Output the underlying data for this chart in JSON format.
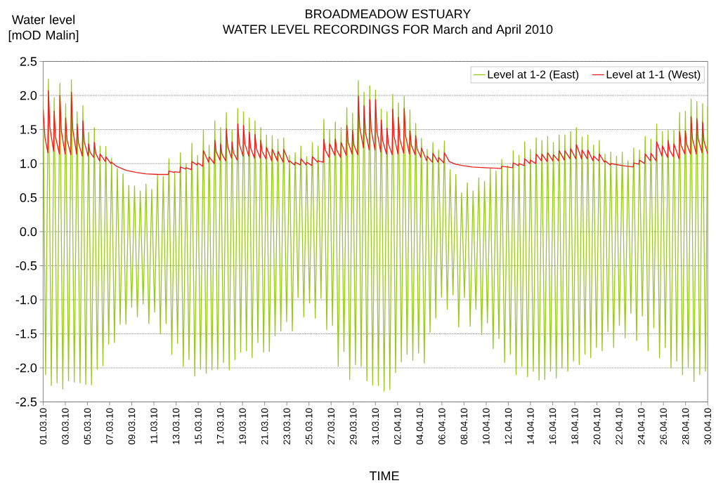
{
  "chart_data": {
    "type": "line",
    "title": "BROADMEADOW ESTUARY",
    "subtitle": "WATER LEVEL RECORDINGS FOR March and April 2010",
    "xlabel": "TIME",
    "ylabel": "Water level [mOD Malin]",
    "xlim": [
      "2010-03-01",
      "2010-04-30"
    ],
    "xticks": [
      {
        "value": "2010-03-01",
        "label": "01.03.10"
      },
      {
        "value": "2010-03-03",
        "label": "03.03.10"
      },
      {
        "value": "2010-03-05",
        "label": "05.03.10"
      },
      {
        "value": "2010-03-07",
        "label": "07.03.10"
      },
      {
        "value": "2010-03-09",
        "label": "09.03.10"
      },
      {
        "value": "2010-03-11",
        "label": "11.03.10"
      },
      {
        "value": "2010-03-13",
        "label": "13.03.10"
      },
      {
        "value": "2010-03-15",
        "label": "15.03.10"
      },
      {
        "value": "2010-03-17",
        "label": "17.03.10"
      },
      {
        "value": "2010-03-19",
        "label": "19.03.10"
      },
      {
        "value": "2010-03-21",
        "label": "21.03.10"
      },
      {
        "value": "2010-03-23",
        "label": "23.03.10"
      },
      {
        "value": "2010-03-25",
        "label": "25.03.10"
      },
      {
        "value": "2010-03-27",
        "label": "27.03.10"
      },
      {
        "value": "2010-03-29",
        "label": "29.03.10"
      },
      {
        "value": "2010-03-31",
        "label": "31.03.10"
      },
      {
        "value": "2010-04-02",
        "label": "02.04.10"
      },
      {
        "value": "2010-04-04",
        "label": "04.04.10"
      },
      {
        "value": "2010-04-06",
        "label": "06.04.10"
      },
      {
        "value": "2010-04-08",
        "label": "08.04.10"
      },
      {
        "value": "2010-04-10",
        "label": "10.04.10"
      },
      {
        "value": "2010-04-12",
        "label": "12.04.10"
      },
      {
        "value": "2010-04-14",
        "label": "14.04.10"
      },
      {
        "value": "2010-04-16",
        "label": "16.04.10"
      },
      {
        "value": "2010-04-18",
        "label": "18.04.10"
      },
      {
        "value": "2010-04-20",
        "label": "20.04.10"
      },
      {
        "value": "2010-04-22",
        "label": "22.04.10"
      },
      {
        "value": "2010-04-24",
        "label": "24.04.10"
      },
      {
        "value": "2010-04-26",
        "label": "26.04.10"
      },
      {
        "value": "2010-04-28",
        "label": "28.04.10"
      },
      {
        "value": "2010-04-30",
        "label": "30.04.10"
      }
    ],
    "ylim": [
      -2.5,
      2.5
    ],
    "yticks": [
      -2.5,
      {
        "value": -2,
        "label": "-2.0"
      },
      -1.5,
      {
        "value": -1,
        "label": "-1.0"
      },
      -0.5,
      {
        "value": 0,
        "label": "0.0"
      },
      0.5,
      {
        "value": 1,
        "label": "1.0"
      },
      1.5,
      {
        "value": 2,
        "label": "2.0"
      },
      2.5
    ],
    "grid": "y",
    "legend": "top right",
    "series": [
      {
        "name": "Level at 1-2 (East)",
        "color": "#9bc81e",
        "x": [
          "2010-03-01T00:00",
          "2010-03-01T05:16",
          "2010-03-01T11:30",
          "2010-03-01T17:42",
          "2010-03-01T23:56",
          "2010-03-02T06:08",
          "2010-03-02T12:22",
          "2010-03-02T18:34",
          "2010-03-03T00:48",
          "2010-03-03T07:00",
          "2010-03-03T13:14",
          "2010-03-03T19:26",
          "2010-03-04T01:40",
          "2010-03-04T07:52",
          "2010-03-04T14:06",
          "2010-03-04T20:18",
          "2010-03-05T02:32",
          "2010-03-05T08:44",
          "2010-03-05T14:58",
          "2010-03-05T21:10",
          "2010-03-06T03:24",
          "2010-03-06T09:36",
          "2010-03-06T15:50",
          "2010-03-06T22:02",
          "2010-03-07T04:16",
          "2010-03-07T10:28",
          "2010-03-07T16:42",
          "2010-03-07T22:54",
          "2010-03-08T05:08",
          "2010-03-08T11:20",
          "2010-03-08T17:34",
          "2010-03-08T23:46",
          "2010-03-09T06:00",
          "2010-03-09T12:12",
          "2010-03-09T18:26",
          "2010-03-10T00:38",
          "2010-03-10T06:52",
          "2010-03-10T13:04",
          "2010-03-10T19:18",
          "2010-03-11T01:30",
          "2010-03-11T07:44",
          "2010-03-11T13:56",
          "2010-03-11T20:10",
          "2010-03-12T02:22",
          "2010-03-12T08:36",
          "2010-03-12T14:48",
          "2010-03-12T21:02",
          "2010-03-13T03:14",
          "2010-03-13T09:28",
          "2010-03-13T15:40",
          "2010-03-13T21:54",
          "2010-03-14T04:06",
          "2010-03-14T10:20",
          "2010-03-14T16:32",
          "2010-03-14T22:46",
          "2010-03-15T04:58",
          "2010-03-15T11:12",
          "2010-03-15T17:24",
          "2010-03-15T23:38",
          "2010-03-16T05:50",
          "2010-03-16T12:04",
          "2010-03-16T18:16",
          "2010-03-17T00:30",
          "2010-03-17T06:42",
          "2010-03-17T12:56",
          "2010-03-17T19:08",
          "2010-03-18T01:22",
          "2010-03-18T07:34",
          "2010-03-18T13:48",
          "2010-03-18T20:00",
          "2010-03-19T02:14",
          "2010-03-19T08:26",
          "2010-03-19T14:40",
          "2010-03-19T20:52",
          "2010-03-20T03:06",
          "2010-03-20T09:18",
          "2010-03-20T15:32",
          "2010-03-20T21:44",
          "2010-03-21T03:58",
          "2010-03-21T10:10",
          "2010-03-21T16:24",
          "2010-03-21T22:36",
          "2010-03-22T04:50",
          "2010-03-22T11:02",
          "2010-03-22T17:16",
          "2010-03-22T23:28",
          "2010-03-23T05:42",
          "2010-03-23T11:54",
          "2010-03-23T18:08",
          "2010-03-24T00:20",
          "2010-03-24T06:34",
          "2010-03-24T12:46",
          "2010-03-24T19:00",
          "2010-03-25T01:12",
          "2010-03-25T07:26",
          "2010-03-25T13:38",
          "2010-03-25T19:52",
          "2010-03-26T02:04",
          "2010-03-26T08:18",
          "2010-03-26T14:30",
          "2010-03-26T20:44",
          "2010-03-27T02:56",
          "2010-03-27T09:10",
          "2010-03-27T15:22",
          "2010-03-27T21:36",
          "2010-03-28T03:48",
          "2010-03-28T10:02",
          "2010-03-28T16:14",
          "2010-03-28T22:28",
          "2010-03-29T04:40",
          "2010-03-29T10:54",
          "2010-03-29T17:06",
          "2010-03-29T23:20",
          "2010-03-30T05:32",
          "2010-03-30T11:46",
          "2010-03-30T17:58",
          "2010-03-31T00:12",
          "2010-03-31T06:24",
          "2010-03-31T12:38",
          "2010-03-31T18:50",
          "2010-04-01T01:04",
          "2010-04-01T07:16",
          "2010-04-01T13:30",
          "2010-04-01T19:42",
          "2010-04-02T01:56",
          "2010-04-02T08:08",
          "2010-04-02T14:22",
          "2010-04-02T20:34",
          "2010-04-03T02:48",
          "2010-04-03T09:00",
          "2010-04-03T15:14",
          "2010-04-03T21:26",
          "2010-04-04T03:40",
          "2010-04-04T09:52",
          "2010-04-04T16:06",
          "2010-04-04T22:18",
          "2010-04-05T04:32",
          "2010-04-05T10:44",
          "2010-04-05T16:58",
          "2010-04-05T23:10",
          "2010-04-06T05:24",
          "2010-04-06T11:36",
          "2010-04-06T17:50",
          "2010-04-07T00:02",
          "2010-04-07T06:16",
          "2010-04-07T12:28",
          "2010-04-07T18:42",
          "2010-04-08T00:54",
          "2010-04-08T07:08",
          "2010-04-08T13:20",
          "2010-04-08T19:34",
          "2010-04-09T01:46",
          "2010-04-09T08:00",
          "2010-04-09T14:12",
          "2010-04-09T20:26",
          "2010-04-10T02:38",
          "2010-04-10T08:52",
          "2010-04-10T15:04",
          "2010-04-10T21:18",
          "2010-04-11T03:30",
          "2010-04-11T09:44",
          "2010-04-11T15:56",
          "2010-04-11T22:10",
          "2010-04-12T04:22",
          "2010-04-12T10:36",
          "2010-04-12T16:48",
          "2010-04-12T23:02",
          "2010-04-13T05:14",
          "2010-04-13T11:28",
          "2010-04-13T17:40",
          "2010-04-13T23:54",
          "2010-04-14T06:06",
          "2010-04-14T12:20",
          "2010-04-14T18:32",
          "2010-04-15T00:46",
          "2010-04-15T06:58",
          "2010-04-15T13:12",
          "2010-04-15T19:24",
          "2010-04-16T01:38",
          "2010-04-16T07:50",
          "2010-04-16T14:04",
          "2010-04-16T20:16",
          "2010-04-17T02:30",
          "2010-04-17T08:42",
          "2010-04-17T14:56",
          "2010-04-17T21:08",
          "2010-04-18T03:22",
          "2010-04-18T09:34",
          "2010-04-18T15:48",
          "2010-04-18T22:00",
          "2010-04-19T04:14",
          "2010-04-19T10:26",
          "2010-04-19T16:40",
          "2010-04-19T22:52",
          "2010-04-20T05:06",
          "2010-04-20T11:18",
          "2010-04-20T17:32",
          "2010-04-20T23:44",
          "2010-04-21T05:58",
          "2010-04-21T12:10",
          "2010-04-21T18:24",
          "2010-04-22T00:36",
          "2010-04-22T06:50",
          "2010-04-22T13:02",
          "2010-04-22T19:16",
          "2010-04-23T01:28",
          "2010-04-23T07:42",
          "2010-04-23T13:54",
          "2010-04-23T20:08",
          "2010-04-24T02:20",
          "2010-04-24T08:34",
          "2010-04-24T14:46",
          "2010-04-24T21:00",
          "2010-04-25T03:12",
          "2010-04-25T09:26",
          "2010-04-25T15:38",
          "2010-04-25T21:52",
          "2010-04-26T04:04",
          "2010-04-26T10:18",
          "2010-04-26T16:30",
          "2010-04-26T22:44",
          "2010-04-27T04:56",
          "2010-04-27T11:10",
          "2010-04-27T17:22",
          "2010-04-27T23:36",
          "2010-04-28T05:48",
          "2010-04-28T12:02",
          "2010-04-28T18:14",
          "2010-04-29T00:28",
          "2010-04-29T06:40",
          "2010-04-29T12:54",
          "2010-04-29T19:06",
          "2010-04-30T00:00"
        ],
        "values": [
          2.0,
          -2.1,
          2.24,
          -2.26,
          1.97,
          -2.22,
          2.18,
          -2.31,
          1.88,
          -2.19,
          2.23,
          -2.21,
          1.76,
          -2.22,
          1.85,
          -2.24,
          1.46,
          -2.25,
          1.53,
          -2.02,
          1.26,
          -1.97,
          1.25,
          -1.65,
          1.08,
          -1.63,
          0.93,
          -1.36,
          0.85,
          -1.36,
          0.68,
          -1.11,
          0.67,
          -1.25,
          0.6,
          -1.06,
          0.7,
          -1.35,
          0.62,
          -1.18,
          0.83,
          -1.5,
          0.81,
          -1.35,
          1.07,
          -1.8,
          0.86,
          -1.64,
          1.16,
          -1.98,
          1.0,
          -1.88,
          1.3,
          -2.12,
          1.12,
          -2.02,
          1.49,
          -2.08,
          1.27,
          -2.03,
          1.63,
          -2.02,
          1.53,
          -1.92,
          1.75,
          -2.03,
          1.49,
          -1.88,
          1.81,
          -1.77,
          1.76,
          -1.75,
          1.67,
          -1.85,
          1.63,
          -1.63,
          1.53,
          -1.77,
          1.42,
          -1.76,
          1.41,
          -1.53,
          1.36,
          -1.46,
          1.38,
          -1.32,
          1.12,
          -1.46,
          1.16,
          -0.97,
          1.26,
          -1.25,
          1.1,
          -1.05,
          1.31,
          -1.27,
          1.26,
          -0.98,
          1.65,
          -1.44,
          1.5,
          -1.38,
          1.61,
          -1.98,
          1.53,
          -1.76,
          1.82,
          -2.17,
          1.74,
          -1.95,
          2.22,
          -1.98,
          2.05,
          -2.19,
          2.14,
          -2.25,
          2.08,
          -2.26,
          1.8,
          -2.34,
          1.76,
          -2.32,
          2.02,
          -2.07,
          1.89,
          -1.91,
          1.99,
          -1.8,
          1.79,
          -1.89,
          1.59,
          -1.78,
          1.37,
          -1.93,
          1.21,
          -1.48,
          1.31,
          -1.27,
          1.2,
          -0.96,
          1.33,
          -1.14,
          0.91,
          -0.93,
          0.84,
          -1.4,
          0.57,
          -0.97,
          0.72,
          -1.39,
          0.6,
          -1.14,
          0.79,
          -1.51,
          0.74,
          -1.34,
          0.93,
          -1.72,
          0.89,
          -1.57,
          1.06,
          -1.92,
          0.97,
          -1.8,
          1.19,
          -2.1,
          1.12,
          -1.98,
          1.32,
          -2.13,
          1.21,
          -2.05,
          1.38,
          -2.18,
          1.34,
          -2.17,
          1.4,
          -2.05,
          1.31,
          -2.15,
          1.42,
          -2.0,
          1.42,
          -2.05,
          1.47,
          -1.9,
          1.53,
          -1.95,
          1.39,
          -1.8,
          1.42,
          -1.85,
          1.27,
          -1.7,
          1.34,
          -1.75,
          1.14,
          -1.47,
          1.17,
          -1.7,
          1.11,
          -1.38,
          1.17,
          -1.56,
          1.04,
          -1.2,
          1.23,
          -1.6,
          1.2,
          -1.24,
          1.4,
          -1.75,
          1.36,
          -1.41,
          1.58,
          -1.85,
          1.47,
          -1.7,
          1.49,
          -2.0,
          1.49,
          -1.9,
          1.75,
          -2.1,
          1.77,
          -2.0,
          1.95,
          -2.2,
          1.91,
          -2.1,
          1.88,
          -2.05,
          1.85
        ]
      },
      {
        "name": "Level at 1-1 (West)",
        "color": "#e81e1e",
        "x": [
          "2010-03-01T00:00",
          "2010-03-01T04:00",
          "2010-03-01T10:18",
          "2010-03-01T11:30",
          "2010-03-01T14:30",
          "2010-03-01T22:44",
          "2010-03-01T23:56",
          "2010-03-02T02:56",
          "2010-03-02T11:10",
          "2010-03-02T12:22",
          "2010-03-02T15:22",
          "2010-03-02T23:36",
          "2010-03-03T00:48",
          "2010-03-03T03:48",
          "2010-03-03T12:02",
          "2010-03-03T13:14",
          "2010-03-03T16:14",
          "2010-03-04T00:28",
          "2010-03-04T01:40",
          "2010-03-04T04:40",
          "2010-03-04T12:54",
          "2010-03-04T14:06",
          "2010-03-04T17:06",
          "2010-03-05T01:20",
          "2010-03-05T02:32",
          "2010-03-05T05:32",
          "2010-03-05T13:46",
          "2010-03-05T14:58",
          "2010-03-05T17:58",
          "2010-03-06T02:12",
          "2010-03-06T03:24",
          "2010-03-06T14:38",
          "2010-03-06T15:50",
          "2010-03-07T03:04",
          "2010-03-07T04:16",
          "2010-03-07T15:00",
          "2010-03-08T12:00",
          "2010-03-09T10:00",
          "2010-03-10T06:00",
          "2010-03-11T09:00",
          "2010-03-12T07:24",
          "2010-03-12T08:36",
          "2010-03-12T19:50",
          "2010-03-12T21:02",
          "2010-03-13T08:16",
          "2010-03-13T09:28",
          "2010-03-13T20:42",
          "2010-03-13T21:54",
          "2010-03-14T09:08",
          "2010-03-14T10:20",
          "2010-03-14T21:34",
          "2010-03-14T22:46",
          "2010-03-15T10:00",
          "2010-03-15T11:12",
          "2010-03-15T22:26",
          "2010-03-15T23:38",
          "2010-03-16T10:52",
          "2010-03-16T12:04",
          "2010-03-16T15:04",
          "2010-03-16T23:18",
          "2010-03-17T00:30",
          "2010-03-17T03:30",
          "2010-03-17T11:44",
          "2010-03-17T12:56",
          "2010-03-17T15:56",
          "2010-03-18T00:10",
          "2010-03-18T01:22",
          "2010-03-18T04:22",
          "2010-03-18T12:36",
          "2010-03-18T13:48",
          "2010-03-18T16:48",
          "2010-03-19T01:02",
          "2010-03-19T02:14",
          "2010-03-19T05:14",
          "2010-03-19T13:28",
          "2010-03-19T14:40",
          "2010-03-19T17:40",
          "2010-03-20T01:54",
          "2010-03-20T03:06",
          "2010-03-20T06:06",
          "2010-03-20T14:20",
          "2010-03-20T15:32",
          "2010-03-20T18:32",
          "2010-03-21T02:46",
          "2010-03-21T03:58",
          "2010-03-21T15:12",
          "2010-03-21T16:24",
          "2010-03-22T03:38",
          "2010-03-22T04:50",
          "2010-03-22T16:04",
          "2010-03-22T17:16",
          "2010-03-23T04:30",
          "2010-03-23T05:42",
          "2010-03-23T16:56",
          "2010-03-23T18:08",
          "2010-03-24T05:22",
          "2010-03-24T06:34",
          "2010-03-24T17:48",
          "2010-03-24T19:00",
          "2010-03-25T06:14",
          "2010-03-25T07:26",
          "2010-03-25T18:40",
          "2010-03-25T19:52",
          "2010-03-26T07:06",
          "2010-03-26T08:18",
          "2010-03-26T11:18",
          "2010-03-26T19:32",
          "2010-03-26T20:44",
          "2010-03-27T07:58",
          "2010-03-27T09:10",
          "2010-03-27T12:10",
          "2010-03-27T20:24",
          "2010-03-27T21:36",
          "2010-03-28T08:50",
          "2010-03-28T10:02",
          "2010-03-28T13:02",
          "2010-03-28T21:16",
          "2010-03-28T22:28",
          "2010-03-29T01:28",
          "2010-03-29T09:42",
          "2010-03-29T10:54",
          "2010-03-29T13:54",
          "2010-03-29T22:08",
          "2010-03-29T23:20",
          "2010-03-30T02:20",
          "2010-03-30T10:34",
          "2010-03-30T11:46",
          "2010-03-30T14:46",
          "2010-03-30T23:00",
          "2010-03-31T00:12",
          "2010-03-31T03:12",
          "2010-03-31T11:26",
          "2010-03-31T12:38",
          "2010-03-31T15:38",
          "2010-03-31T23:52",
          "2010-04-01T01:04",
          "2010-04-01T04:04",
          "2010-04-01T12:18",
          "2010-04-01T13:30",
          "2010-04-01T16:30",
          "2010-04-02T00:44",
          "2010-04-02T01:56",
          "2010-04-02T04:56",
          "2010-04-02T13:10",
          "2010-04-02T14:22",
          "2010-04-02T17:22",
          "2010-04-03T01:36",
          "2010-04-03T02:48",
          "2010-04-03T05:48",
          "2010-04-03T14:02",
          "2010-04-03T15:14",
          "2010-04-03T18:14",
          "2010-04-04T02:28",
          "2010-04-04T03:40",
          "2010-04-04T14:54",
          "2010-04-04T16:06",
          "2010-04-05T03:20",
          "2010-04-05T04:32",
          "2010-04-05T15:46",
          "2010-04-05T16:58",
          "2010-04-06T04:12",
          "2010-04-06T05:24",
          "2010-04-06T16:00",
          "2010-04-07T05:00",
          "2010-04-07T21:00",
          "2010-04-08T18:00",
          "2010-04-09T20:00",
          "2010-04-11T08:30",
          "2010-04-11T09:44",
          "2010-04-11T22:10",
          "2010-04-12T09:24",
          "2010-04-12T10:36",
          "2010-04-12T21:50",
          "2010-04-12T23:02",
          "2010-04-13T10:16",
          "2010-04-13T11:28",
          "2010-04-13T22:42",
          "2010-04-13T23:54",
          "2010-04-14T11:08",
          "2010-04-14T12:20",
          "2010-04-14T23:34",
          "2010-04-15T00:46",
          "2010-04-15T12:00",
          "2010-04-15T13:12",
          "2010-04-16T00:26",
          "2010-04-16T01:38",
          "2010-04-16T12:52",
          "2010-04-16T14:04",
          "2010-04-17T01:18",
          "2010-04-17T02:30",
          "2010-04-17T13:44",
          "2010-04-17T14:56",
          "2010-04-18T02:10",
          "2010-04-18T03:22",
          "2010-04-18T14:36",
          "2010-04-18T15:48",
          "2010-04-19T03:02",
          "2010-04-19T04:14",
          "2010-04-19T15:28",
          "2010-04-19T16:40",
          "2010-04-20T03:54",
          "2010-04-20T05:06",
          "2010-04-20T16:20",
          "2010-04-20T17:32",
          "2010-04-21T04:46",
          "2010-04-21T05:58",
          "2010-04-22T06:50",
          "2010-04-23T06:30",
          "2010-04-23T07:42",
          "2010-04-23T18:56",
          "2010-04-23T20:08",
          "2010-04-24T07:22",
          "2010-04-24T08:34",
          "2010-04-24T19:48",
          "2010-04-24T21:00",
          "2010-04-25T08:14",
          "2010-04-25T09:26",
          "2010-04-25T20:40",
          "2010-04-25T21:52",
          "2010-04-26T09:06",
          "2010-04-26T10:18",
          "2010-04-26T13:18",
          "2010-04-26T21:32",
          "2010-04-26T22:44",
          "2010-04-27T09:58",
          "2010-04-27T11:10",
          "2010-04-27T14:10",
          "2010-04-27T22:24",
          "2010-04-27T23:36",
          "2010-04-28T02:36",
          "2010-04-28T10:50",
          "2010-04-28T12:02",
          "2010-04-28T15:02",
          "2010-04-28T23:16",
          "2010-04-29T00:28",
          "2010-04-29T03:28",
          "2010-04-29T11:42",
          "2010-04-29T12:54",
          "2010-04-29T15:54",
          "2010-04-30T00:00"
        ],
        "values": [
          1.79,
          1.38,
          1.16,
          2.07,
          1.54,
          1.18,
          1.77,
          1.39,
          1.14,
          2.0,
          1.48,
          1.14,
          1.67,
          1.35,
          1.13,
          2.05,
          1.5,
          1.14,
          1.58,
          1.3,
          1.11,
          1.63,
          1.32,
          1.11,
          1.29,
          1.17,
          1.09,
          1.31,
          1.15,
          1.04,
          1.14,
          1.03,
          1.1,
          1.0,
          1.02,
          0.96,
          0.9,
          0.87,
          0.85,
          0.84,
          0.84,
          0.89,
          0.87,
          0.88,
          0.87,
          0.95,
          0.92,
          0.94,
          0.91,
          1.03,
          0.98,
          1.01,
          0.96,
          1.19,
          1.02,
          1.1,
          1.0,
          1.34,
          1.17,
          1.05,
          1.29,
          1.14,
          1.04,
          1.51,
          1.25,
          1.08,
          1.32,
          1.16,
          1.05,
          1.58,
          1.3,
          1.11,
          1.56,
          1.29,
          1.11,
          1.46,
          1.23,
          1.08,
          1.43,
          1.22,
          1.08,
          1.34,
          1.18,
          1.07,
          1.24,
          1.04,
          1.21,
          1.04,
          1.18,
          1.02,
          1.21,
          1.02,
          1.04,
          0.98,
          1.02,
          0.98,
          1.07,
          0.98,
          1.02,
          0.97,
          1.1,
          1.02,
          1.04,
          1.02,
          1.36,
          1.2,
          1.09,
          1.29,
          1.12,
          1.36,
          1.2,
          1.09,
          1.31,
          1.12,
          1.56,
          1.31,
          1.14,
          1.49,
          1.27,
          1.13,
          1.99,
          1.53,
          1.23,
          1.85,
          1.46,
          1.2,
          1.94,
          1.5,
          1.2,
          1.94,
          1.48,
          1.17,
          1.64,
          1.34,
          1.14,
          1.52,
          1.29,
          1.13,
          1.8,
          1.4,
          1.14,
          1.68,
          1.36,
          1.15,
          1.81,
          1.41,
          1.14,
          1.48,
          1.27,
          1.13,
          1.41,
          1.22,
          1.09,
          1.23,
          1.04,
          1.11,
          1.02,
          1.15,
          1.02,
          1.09,
          1.01,
          1.16,
          1.03,
          0.99,
          0.97,
          0.95,
          0.94,
          0.93,
          0.96,
          0.95,
          0.94,
          1.01,
          0.97,
          1.0,
          0.97,
          1.07,
          1.0,
          1.05,
          1.0,
          1.14,
          1.04,
          1.14,
          1.03,
          1.16,
          1.04,
          1.13,
          1.04,
          1.19,
          1.05,
          1.19,
          1.07,
          1.22,
          1.07,
          1.28,
          1.07,
          1.2,
          1.07,
          1.2,
          1.04,
          1.11,
          1.04,
          1.14,
          1.02,
          1.04,
          0.98,
          1.0,
          0.97,
          0.95,
          1.01,
          0.99,
          1.05,
          1.0,
          1.14,
          1.04,
          1.15,
          1.04,
          1.32,
          1.11,
          1.26,
          1.09,
          1.34,
          1.2,
          1.1,
          1.29,
          1.07,
          1.47,
          1.27,
          1.14,
          1.48,
          1.28,
          1.14,
          1.69,
          1.36,
          1.14,
          1.66,
          1.36,
          1.16,
          1.61,
          1.33,
          1.14
        ]
      }
    ]
  }
}
